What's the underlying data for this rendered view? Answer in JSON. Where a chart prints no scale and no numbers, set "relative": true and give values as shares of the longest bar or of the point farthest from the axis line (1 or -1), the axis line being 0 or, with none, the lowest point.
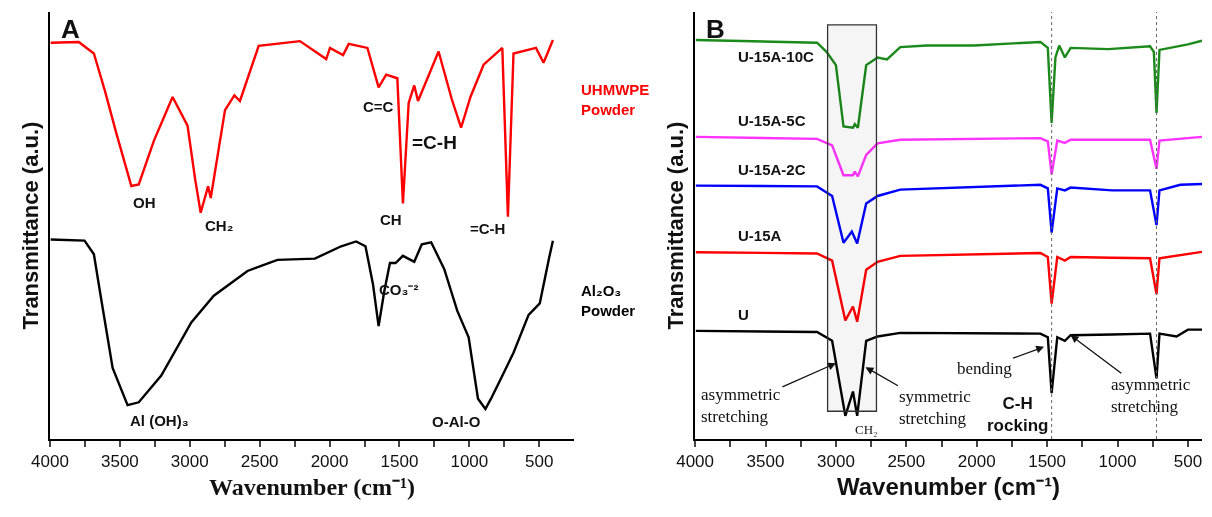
{
  "chart_data": [
    {
      "type": "line",
      "title": "A",
      "xlabel": "Wavenumber (cm⁻¹)",
      "ylabel": "Transmittance (a.u.)",
      "relative": true,
      "tick_labels": "x",
      "xlim": [
        4000,
        250
      ],
      "xticks": [
        4000,
        {
          "value": 3750,
          "label": null
        },
        3500,
        {
          "value": 3250,
          "label": null
        },
        3000,
        {
          "value": 2750,
          "label": null
        },
        2500,
        {
          "value": 2250,
          "label": null
        },
        2000,
        {
          "value": 1750,
          "label": null
        },
        1500,
        {
          "value": 1250,
          "label": null
        },
        1000,
        {
          "value": 750,
          "label": null
        },
        500
      ],
      "series": [
        {
          "name": "UHMWPE Powder",
          "color": "#ff0000",
          "x": [
            3995,
            3794,
            3686,
            3606,
            3525,
            3418,
            3365,
            3257,
            3123,
            3016,
            2962,
            2922,
            2869,
            2850,
            2748,
            2681,
            2641,
            2507,
            2212,
            2024,
            1997,
            1903,
            1863,
            1729,
            1649,
            1595,
            1515,
            1475,
            1434,
            1394,
            1367,
            1220,
            1126,
            1059,
            992,
            898,
            764,
            724,
            684,
            523,
            469,
            402
          ],
          "values": [
            0.993,
            0.995,
            0.966,
            0.871,
            0.766,
            0.634,
            0.638,
            0.747,
            0.857,
            0.785,
            0.652,
            0.567,
            0.633,
            0.604,
            0.824,
            0.861,
            0.847,
            0.985,
            0.997,
            0.952,
            0.98,
            0.962,
            0.99,
            0.98,
            0.881,
            0.913,
            0.904,
            0.59,
            0.842,
            0.886,
            0.847,
            0.971,
            0.852,
            0.78,
            0.857,
            0.938,
            0.98,
            0.557,
            0.966,
            0.98,
            0.943,
            1
          ]
        },
        {
          "name": "Al₂O₃ Powder",
          "color": "#000000",
          "x": [
            3995,
            3753,
            3686,
            3633,
            3552,
            3445,
            3365,
            3204,
            2989,
            2828,
            2587,
            2373,
            2105,
            1917,
            1810,
            1743,
            1689,
            1649,
            1609,
            1568,
            1528,
            1475,
            1394,
            1340,
            1273,
            1180,
            1086,
            1005,
            938,
            885,
            845,
            777,
            684,
            576,
            496,
            429,
            402
          ],
          "values": [
            0.5,
            0.497,
            0.463,
            0.349,
            0.178,
            0.085,
            0.092,
            0.159,
            0.292,
            0.359,
            0.421,
            0.449,
            0.452,
            0.483,
            0.495,
            0.483,
            0.387,
            0.283,
            0.369,
            0.441,
            0.441,
            0.459,
            0.444,
            0.488,
            0.493,
            0.426,
            0.321,
            0.255,
            0.101,
            0.075,
            0.101,
            0.149,
            0.216,
            0.311,
            0.34,
            0.454,
            0.497
          ]
        }
      ],
      "annotations": [
        "OH",
        "CH₂",
        "C=C",
        "CH",
        "=C-H",
        "=C-H",
        "Al (OH)₃",
        "CO₃⁻²",
        "O-Al-O"
      ]
    },
    {
      "type": "line",
      "title": "B",
      "xlabel": "Wavenumber (cm⁻¹)",
      "ylabel": "Transmittance (a.u.)",
      "relative": true,
      "tick_labels": "x",
      "xlim": [
        4000,
        400
      ],
      "xticks": [
        4000,
        {
          "value": 3750,
          "label": null
        },
        3500,
        {
          "value": 3250,
          "label": null
        },
        3000,
        {
          "value": 2750,
          "label": null
        },
        2500,
        {
          "value": 2250,
          "label": null
        },
        2000,
        {
          "value": 1750,
          "label": null
        },
        1500,
        {
          "value": 1250,
          "label": null
        },
        1000,
        {
          "value": 750,
          "label": null
        },
        500
      ],
      "series": [
        {
          "name": "U-15A-10C",
          "color": "#1a8a1a",
          "x": [
            3995,
            3134,
            3067,
            3000,
            2946,
            2879,
            2866,
            2844,
            2785,
            2704,
            2637,
            2543,
            2355,
            2019,
            1548,
            1495,
            1468,
            1441,
            1414,
            1374,
            1333,
            1065,
            769,
            742,
            723,
            702,
            500,
            400
          ],
          "values": [
            1,
            0.993,
            0.97,
            0.937,
            0.783,
            0.78,
            0.789,
            0.78,
            0.937,
            0.956,
            0.951,
            0.982,
            0.986,
            0.986,
            0.995,
            0.98,
            0.792,
            0.956,
            0.986,
            0.956,
            0.98,
            0.977,
            0.984,
            0.97,
            0.817,
            0.975,
            0.989,
            0.998
          ]
        },
        {
          "name": "U-15A-5C",
          "color": "#ff33ff",
          "x": [
            3995,
            3134,
            3027,
            2946,
            2879,
            2866,
            2844,
            2785,
            2704,
            2543,
            1548,
            1495,
            1468,
            1428,
            1374,
            1333,
            769,
            723,
            702,
            400
          ],
          "values": [
            0.757,
            0.752,
            0.736,
            0.661,
            0.661,
            0.67,
            0.658,
            0.712,
            0.741,
            0.75,
            0.754,
            0.746,
            0.663,
            0.748,
            0.742,
            0.75,
            0.75,
            0.677,
            0.748,
            0.757
          ]
        },
        {
          "name": "U-15A-2C",
          "color": "#0000ff",
          "x": [
            3995,
            3134,
            3027,
            2946,
            2887,
            2849,
            2785,
            2704,
            2543,
            1548,
            1495,
            1468,
            1428,
            1374,
            1333,
            1038,
            769,
            723,
            702,
            554,
            400
          ],
          "values": [
            0.635,
            0.633,
            0.609,
            0.492,
            0.52,
            0.49,
            0.59,
            0.609,
            0.625,
            0.637,
            0.628,
            0.517,
            0.628,
            0.623,
            0.63,
            0.623,
            0.623,
            0.536,
            0.623,
            0.637,
            0.639
          ]
        },
        {
          "name": "U-15A",
          "color": "#ff0000",
          "x": [
            3995,
            3134,
            3027,
            2933,
            2879,
            2849,
            2785,
            2704,
            2543,
            1548,
            1495,
            1468,
            1428,
            1374,
            1333,
            1038,
            769,
            723,
            702,
            400
          ],
          "values": [
            0.468,
            0.465,
            0.447,
            0.297,
            0.332,
            0.294,
            0.424,
            0.444,
            0.459,
            0.466,
            0.456,
            0.339,
            0.456,
            0.447,
            0.456,
            0.454,
            0.453,
            0.363,
            0.453,
            0.469
          ]
        },
        {
          "name": "U",
          "color": "#000000",
          "x": [
            3995,
            3134,
            3027,
            2933,
            2879,
            2849,
            2785,
            2704,
            2543,
            1548,
            1495,
            1468,
            1428,
            1374,
            1333,
            1038,
            769,
            723,
            702,
            581,
            500,
            400
          ],
          "values": [
            0.271,
            0.268,
            0.246,
            0.058,
            0.119,
            0.058,
            0.246,
            0.257,
            0.266,
            0.264,
            0.255,
            0.115,
            0.255,
            0.246,
            0.26,
            0.262,
            0.264,
            0.152,
            0.264,
            0.257,
            0.274,
            0.274
          ]
        }
      ],
      "ref_lines": [
        {
          "axis": "x",
          "value": 1468,
          "color": "#666666",
          "line_style": "dotted"
        },
        {
          "axis": "x",
          "value": 723,
          "color": "#666666",
          "line_style": "dotted"
        }
      ],
      "bands": [
        {
          "axis": "x",
          "from": 3059,
          "to": 2712,
          "color": "#333333"
        }
      ],
      "annotations": [
        {
          "text": "asymmetric stretching",
          "x": 3000,
          "y": 0.19
        },
        {
          "text": "symmetric stretching",
          "x": 2790,
          "y": 0.18
        },
        {
          "text": "bending",
          "x": 1522,
          "y": 0.231
        },
        {
          "text": "asymmetric stretching",
          "x": 1333,
          "y": 0.26
        },
        "C-H rocking",
        "CH₂"
      ]
    }
  ]
}
